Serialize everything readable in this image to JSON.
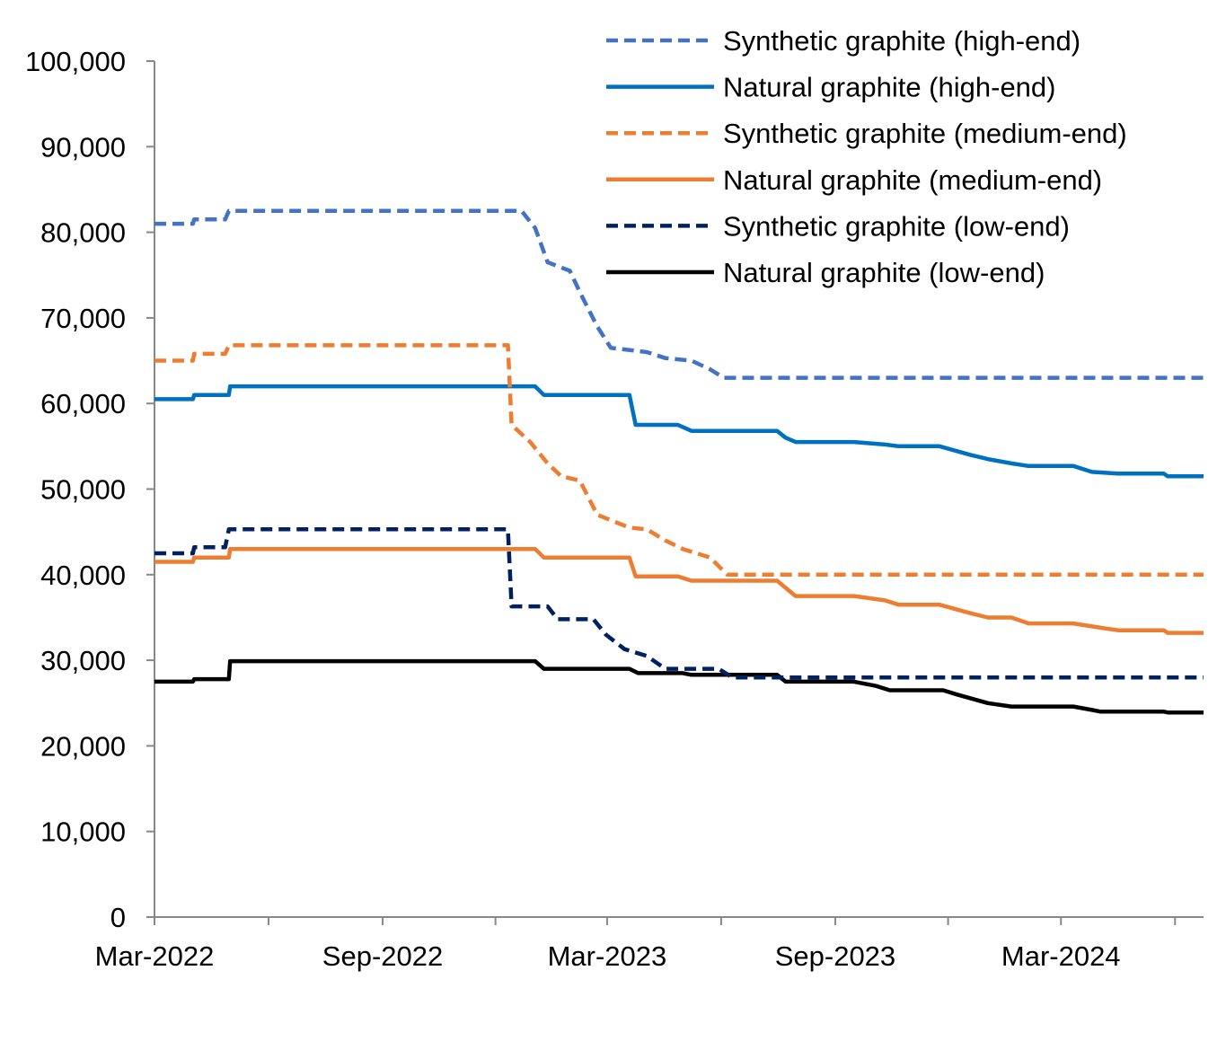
{
  "chart_data": {
    "type": "line",
    "title": "",
    "xlabel": "",
    "ylabel": "",
    "xlim": [
      "2022-03-01",
      "2024-06-24"
    ],
    "ylim": [
      0,
      100000
    ],
    "yticks": [
      0,
      10000,
      20000,
      30000,
      40000,
      50000,
      60000,
      70000,
      80000,
      90000,
      100000
    ],
    "ytick_labels": [
      "0",
      "10,000",
      "20,000",
      "30,000",
      "40,000",
      "50,000",
      "60,000",
      "70,000",
      "80,000",
      "90,000",
      "100,000"
    ],
    "xticks_minor": [
      "2022-03-01",
      "2022-06-01",
      "2022-09-01",
      "2022-12-01",
      "2023-03-01",
      "2023-06-01",
      "2023-09-01",
      "2023-12-01",
      "2024-03-01",
      "2024-06-01"
    ],
    "xticks": [
      "2022-03-01",
      "2022-09-01",
      "2023-03-01",
      "2023-09-01",
      "2024-03-01"
    ],
    "xtick_labels": [
      "Mar-2022",
      "Sep-2022",
      "Mar-2023",
      "Sep-2023",
      "Mar-2024"
    ],
    "grid": false,
    "legend_position": "top-right",
    "series": [
      {
        "name": "Synthetic graphite (high-end)",
        "color": "#4472C4",
        "dashed": true,
        "points": [
          [
            "2022-03-01",
            81000
          ],
          [
            "2022-04-01",
            81000
          ],
          [
            "2022-04-02",
            81500
          ],
          [
            "2022-04-27",
            81500
          ],
          [
            "2022-04-30",
            82500
          ],
          [
            "2022-12-22",
            82500
          ],
          [
            "2023-01-02",
            80500
          ],
          [
            "2023-01-12",
            76500
          ],
          [
            "2023-01-30",
            75500
          ],
          [
            "2023-02-07",
            73000
          ],
          [
            "2023-02-21",
            69000
          ],
          [
            "2023-03-04",
            66500
          ],
          [
            "2023-04-02",
            66000
          ],
          [
            "2023-04-17",
            65300
          ],
          [
            "2023-05-08",
            65000
          ],
          [
            "2023-05-23",
            64000
          ],
          [
            "2023-06-03",
            63000
          ],
          [
            "2024-06-24",
            63000
          ]
        ]
      },
      {
        "name": "Natural graphite (high-end)",
        "color": "#0070C0",
        "dashed": false,
        "points": [
          [
            "2022-03-01",
            60500
          ],
          [
            "2022-04-01",
            60500
          ],
          [
            "2022-04-02",
            61000
          ],
          [
            "2022-04-30",
            61000
          ],
          [
            "2022-05-01",
            62000
          ],
          [
            "2023-01-02",
            62000
          ],
          [
            "2023-01-09",
            61000
          ],
          [
            "2023-03-19",
            61000
          ],
          [
            "2023-03-24",
            57500
          ],
          [
            "2023-04-27",
            57500
          ],
          [
            "2023-05-08",
            56800
          ],
          [
            "2023-07-16",
            56800
          ],
          [
            "2023-07-23",
            56000
          ],
          [
            "2023-07-31",
            55500
          ],
          [
            "2023-09-16",
            55500
          ],
          [
            "2023-10-11",
            55200
          ],
          [
            "2023-10-22",
            55000
          ],
          [
            "2023-11-24",
            55000
          ],
          [
            "2023-12-19",
            54000
          ],
          [
            "2024-01-02",
            53500
          ],
          [
            "2024-01-21",
            53000
          ],
          [
            "2024-02-04",
            52700
          ],
          [
            "2024-03-11",
            52700
          ],
          [
            "2024-03-26",
            52000
          ],
          [
            "2024-04-16",
            51800
          ],
          [
            "2024-05-23",
            51800
          ],
          [
            "2024-05-26",
            51500
          ],
          [
            "2024-06-24",
            51500
          ]
        ]
      },
      {
        "name": "Synthetic graphite (medium-end)",
        "color": "#ED7D31",
        "dashed": true,
        "points": [
          [
            "2022-03-01",
            65000
          ],
          [
            "2022-04-01",
            65000
          ],
          [
            "2022-04-02",
            65800
          ],
          [
            "2022-04-27",
            65800
          ],
          [
            "2022-04-30",
            66800
          ],
          [
            "2022-12-11",
            66800
          ],
          [
            "2022-12-14",
            57500
          ],
          [
            "2022-12-29",
            55500
          ],
          [
            "2023-01-12",
            53000
          ],
          [
            "2023-01-23",
            51500
          ],
          [
            "2023-02-07",
            51000
          ],
          [
            "2023-02-21",
            47000
          ],
          [
            "2023-03-19",
            45500
          ],
          [
            "2023-04-02",
            45300
          ],
          [
            "2023-04-17",
            44000
          ],
          [
            "2023-05-01",
            43000
          ],
          [
            "2023-05-23",
            42000
          ],
          [
            "2023-06-06",
            40000
          ],
          [
            "2024-06-24",
            40000
          ]
        ]
      },
      {
        "name": "Natural graphite (medium-end)",
        "color": "#ED7D31",
        "dashed": false,
        "points": [
          [
            "2022-03-01",
            41500
          ],
          [
            "2022-04-01",
            41500
          ],
          [
            "2022-04-02",
            42000
          ],
          [
            "2022-04-30",
            42000
          ],
          [
            "2022-05-01",
            43000
          ],
          [
            "2023-01-02",
            43000
          ],
          [
            "2023-01-09",
            42000
          ],
          [
            "2023-03-19",
            42000
          ],
          [
            "2023-03-24",
            39800
          ],
          [
            "2023-04-27",
            39800
          ],
          [
            "2023-05-08",
            39300
          ],
          [
            "2023-07-16",
            39300
          ],
          [
            "2023-07-31",
            37500
          ],
          [
            "2023-09-16",
            37500
          ],
          [
            "2023-10-11",
            37000
          ],
          [
            "2023-10-22",
            36500
          ],
          [
            "2023-11-24",
            36500
          ],
          [
            "2023-12-19",
            35500
          ],
          [
            "2024-01-02",
            35000
          ],
          [
            "2024-01-21",
            35000
          ],
          [
            "2024-02-04",
            34300
          ],
          [
            "2024-03-11",
            34300
          ],
          [
            "2024-04-02",
            33800
          ],
          [
            "2024-04-16",
            33500
          ],
          [
            "2024-05-23",
            33500
          ],
          [
            "2024-05-26",
            33200
          ],
          [
            "2024-06-24",
            33200
          ]
        ]
      },
      {
        "name": "Synthetic graphite (low-end)",
        "color": "#002060",
        "dashed": true,
        "points": [
          [
            "2022-03-01",
            42500
          ],
          [
            "2022-04-01",
            42500
          ],
          [
            "2022-04-02",
            43200
          ],
          [
            "2022-04-27",
            43200
          ],
          [
            "2022-04-30",
            45300
          ],
          [
            "2022-12-11",
            45300
          ],
          [
            "2022-12-14",
            36300
          ],
          [
            "2023-01-12",
            36300
          ],
          [
            "2023-01-20",
            34800
          ],
          [
            "2023-02-18",
            34800
          ],
          [
            "2023-02-28",
            33000
          ],
          [
            "2023-03-15",
            31300
          ],
          [
            "2023-04-02",
            30500
          ],
          [
            "2023-04-17",
            29000
          ],
          [
            "2023-05-30",
            29000
          ],
          [
            "2023-06-10",
            28000
          ],
          [
            "2024-06-24",
            28000
          ]
        ]
      },
      {
        "name": "Natural graphite (low-end)",
        "color": "#000000",
        "dashed": false,
        "points": [
          [
            "2022-03-01",
            27500
          ],
          [
            "2022-04-01",
            27500
          ],
          [
            "2022-04-02",
            27800
          ],
          [
            "2022-04-30",
            27800
          ],
          [
            "2022-05-01",
            29900
          ],
          [
            "2023-01-02",
            29900
          ],
          [
            "2023-01-09",
            29000
          ],
          [
            "2023-03-19",
            29000
          ],
          [
            "2023-03-26",
            28500
          ],
          [
            "2023-05-01",
            28500
          ],
          [
            "2023-05-08",
            28300
          ],
          [
            "2023-07-16",
            28300
          ],
          [
            "2023-07-23",
            27500
          ],
          [
            "2023-09-16",
            27500
          ],
          [
            "2023-10-04",
            27000
          ],
          [
            "2023-10-15",
            26500
          ],
          [
            "2023-11-27",
            26500
          ],
          [
            "2023-12-08",
            26000
          ],
          [
            "2024-01-02",
            25000
          ],
          [
            "2024-01-21",
            24600
          ],
          [
            "2024-03-11",
            24600
          ],
          [
            "2024-03-26",
            24200
          ],
          [
            "2024-04-02",
            24000
          ],
          [
            "2024-05-23",
            24000
          ],
          [
            "2024-05-26",
            23900
          ],
          [
            "2024-06-24",
            23900
          ]
        ]
      }
    ]
  }
}
